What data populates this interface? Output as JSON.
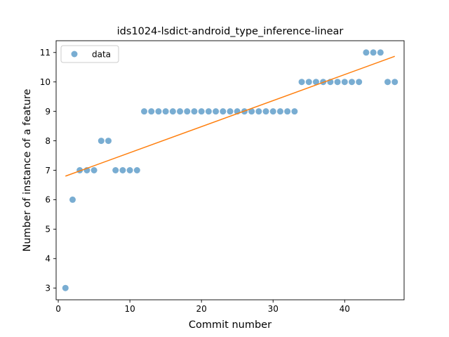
{
  "chart_data": {
    "type": "scatter",
    "title": "ids1024-lsdict-android_type_inference-linear",
    "xlabel": "Commit number",
    "ylabel": "Number of instance of a feature",
    "xlim": [
      -0.3,
      48.3
    ],
    "ylim": [
      2.6,
      11.4
    ],
    "xticks": [
      0,
      10,
      20,
      30,
      40
    ],
    "yticks": [
      3,
      4,
      5,
      6,
      7,
      8,
      9,
      10,
      11
    ],
    "grid": false,
    "legend_position": "top-left",
    "series": [
      {
        "name": "data",
        "kind": "scatter",
        "color": "#1f77b4",
        "x": [
          1,
          2,
          3,
          4,
          5,
          6,
          7,
          8,
          9,
          10,
          11,
          12,
          13,
          14,
          15,
          16,
          17,
          18,
          19,
          20,
          21,
          22,
          23,
          24,
          25,
          26,
          27,
          28,
          29,
          30,
          31,
          32,
          33,
          34,
          35,
          36,
          37,
          38,
          39,
          40,
          41,
          42,
          43,
          44,
          45,
          46,
          47
        ],
        "y": [
          3,
          6,
          7,
          7,
          7,
          8,
          8,
          7,
          7,
          7,
          7,
          9,
          9,
          9,
          9,
          9,
          9,
          9,
          9,
          9,
          9,
          9,
          9,
          9,
          9,
          9,
          9,
          9,
          9,
          9,
          9,
          9,
          9,
          10,
          10,
          10,
          10,
          10,
          10,
          10,
          10,
          10,
          11,
          11,
          11,
          10,
          10
        ]
      },
      {
        "kind": "line",
        "color": "#ff7f0e",
        "x": [
          1,
          47
        ],
        "y": [
          6.8,
          10.87
        ]
      }
    ]
  }
}
